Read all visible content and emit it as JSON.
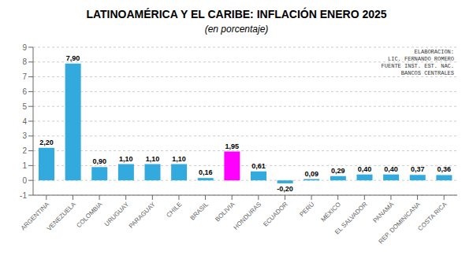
{
  "chart_data": {
    "type": "bar",
    "title": "LATINOAMÉRICA Y EL CARIBE: INFLACIÓN ENERO 2025",
    "subtitle": "(en porcentaje)",
    "categories": [
      "ARGENTINA",
      "VENEZUELA",
      "COLOMBIA",
      "URUGUAY",
      "PARAGUAY",
      "CHILE",
      "BRASIL",
      "BOLIVIA",
      "HONDURAS",
      "ECUADOR",
      "PERÚ",
      "MÉXICO",
      "EL SALVADOR",
      "PANAMÁ",
      "REP. DOMINICANA",
      "COSTA RICA"
    ],
    "values": [
      2.2,
      7.9,
      0.9,
      1.1,
      1.1,
      1.1,
      0.16,
      1.95,
      0.61,
      -0.2,
      0.09,
      0.29,
      0.4,
      0.4,
      0.37,
      0.36
    ],
    "value_labels": [
      "2,20",
      "7,90",
      "0,90",
      "1,10",
      "1,10",
      "1,10",
      "0,16",
      "1,95",
      "0,61",
      "-0,20",
      "0,09",
      "0,29",
      "0,40",
      "0,40",
      "0,37",
      "0,36"
    ],
    "data_labels": true,
    "colors": [
      "#33AADD",
      "#33AADD",
      "#33AADD",
      "#33AADD",
      "#33AADD",
      "#33AADD",
      "#33AADD",
      "#FF00FF",
      "#33AADD",
      "#33AADD",
      "#33AADD",
      "#33AADD",
      "#33AADD",
      "#33AADD",
      "#33AADD",
      "#33AADD"
    ],
    "ylim": [
      -1,
      9
    ],
    "yticks": [
      -1,
      0,
      1,
      2,
      3,
      4,
      5,
      6,
      7,
      8,
      9
    ],
    "grid": true,
    "annotation": "ELABORACION:\nLIC. FERNANDO ROMERO\nFUENTE INST. EST. NAC.\nBANCOS CENTRALES"
  }
}
